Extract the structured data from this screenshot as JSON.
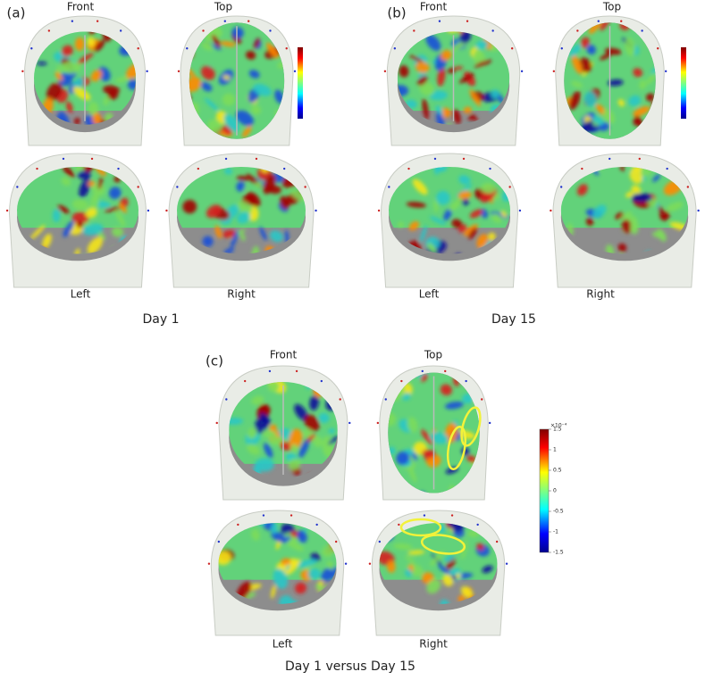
{
  "panels": [
    {
      "label": "(a)",
      "views": [
        "Front",
        "Top",
        "Left",
        "Right"
      ],
      "caption": "Day 1"
    },
    {
      "label": "(b)",
      "views": [
        "Front",
        "Top",
        "Left",
        "Right"
      ],
      "caption": "Day 15"
    },
    {
      "label": "(c)",
      "views": [
        "Front",
        "Top",
        "Left",
        "Right"
      ],
      "caption": "Day 1 versus Day 15",
      "colorbar": {
        "exponent": "×10⁻⁴",
        "ylim": [
          -1.5,
          1.5
        ],
        "ticks": [
          1.5,
          1,
          0.5,
          0,
          -0.5,
          -1,
          -1.5
        ]
      }
    }
  ]
}
